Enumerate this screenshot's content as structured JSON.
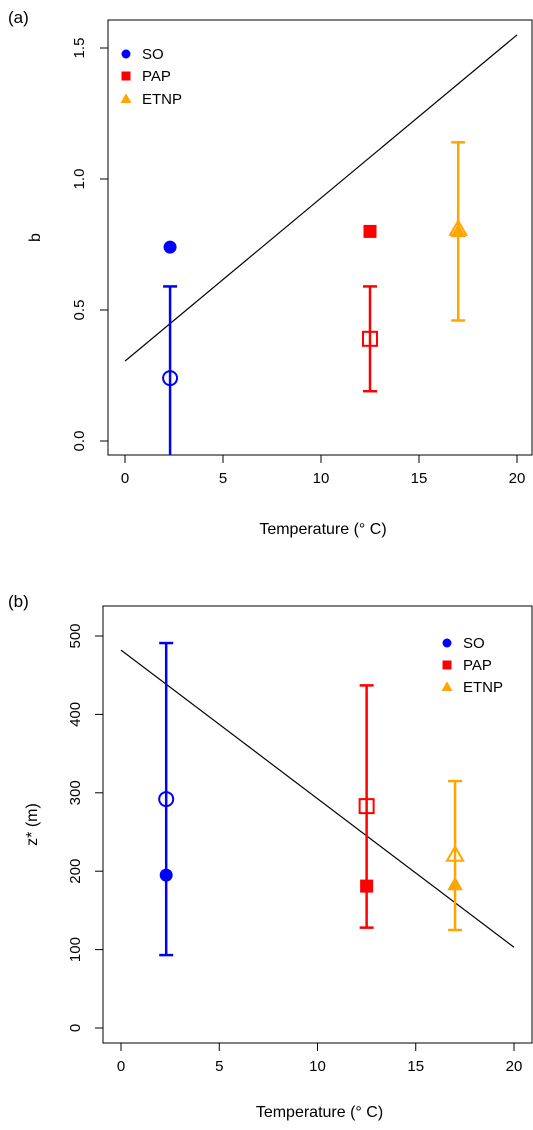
{
  "colors": {
    "SO": "#0000ff",
    "PAP": "#ff0000",
    "ETNP": "#ffa500",
    "axis": "#000000"
  },
  "chart_data": [
    {
      "type": "scatter",
      "panel_label": "(a)",
      "xlabel": "Temperature (° C)",
      "ylabel": "b",
      "xlim": [
        0,
        20
      ],
      "ylim": [
        0,
        1.5
      ],
      "x_ticks": [
        0,
        5,
        10,
        15,
        20
      ],
      "x_tick_labels": [
        "0",
        "5",
        "10",
        "15",
        "20"
      ],
      "y_ticks": [
        0,
        0.5,
        1.0,
        1.5
      ],
      "y_tick_labels": [
        "0.0",
        "0.5",
        "1.0",
        "1.5"
      ],
      "grid": false,
      "legend_position": "top-left",
      "legend": [
        {
          "name": "SO",
          "marker": "circle",
          "color": "#0000ff"
        },
        {
          "name": "PAP",
          "marker": "square",
          "color": "#ff0000"
        },
        {
          "name": "ETNP",
          "marker": "triangle",
          "color": "#ffa500"
        }
      ],
      "series": [
        {
          "name": "SO",
          "color": "#0000ff",
          "marker": "circle",
          "filled": {
            "x": 2.3,
            "y": 0.74
          },
          "open": {
            "x": 2.3,
            "y": 0.24,
            "err_low": -0.06,
            "err_high": 0.59
          }
        },
        {
          "name": "PAP",
          "color": "#ff0000",
          "marker": "square",
          "filled": {
            "x": 12.5,
            "y": 0.8
          },
          "open": {
            "x": 12.5,
            "y": 0.39,
            "err_low": 0.19,
            "err_high": 0.59
          }
        },
        {
          "name": "ETNP",
          "color": "#ffa500",
          "marker": "triangle",
          "filled": {
            "x": 17.0,
            "y": 0.8
          },
          "open": {
            "x": 17.0,
            "y": 0.81,
            "err_low": 0.46,
            "err_high": 1.14
          }
        }
      ],
      "fit_line": {
        "x": [
          0,
          20
        ],
        "y": [
          0.305,
          1.55
        ]
      }
    },
    {
      "type": "scatter",
      "panel_label": "(b)",
      "xlabel": "Temperature (° C)",
      "ylabel": "z* (m)",
      "xlim": [
        0,
        20
      ],
      "ylim": [
        0,
        500
      ],
      "x_ticks": [
        0,
        5,
        10,
        15,
        20
      ],
      "x_tick_labels": [
        "0",
        "5",
        "10",
        "15",
        "20"
      ],
      "y_ticks": [
        0,
        100,
        200,
        300,
        400,
        500
      ],
      "y_tick_labels": [
        "0",
        "100",
        "200",
        "300",
        "400",
        "500"
      ],
      "grid": false,
      "legend_position": "top-right",
      "legend": [
        {
          "name": "SO",
          "marker": "circle",
          "color": "#0000ff"
        },
        {
          "name": "PAP",
          "marker": "square",
          "color": "#ff0000"
        },
        {
          "name": "ETNP",
          "marker": "triangle",
          "color": "#ffa500"
        }
      ],
      "series": [
        {
          "name": "SO",
          "color": "#0000ff",
          "marker": "circle",
          "filled": {
            "x": 2.3,
            "y": 195
          },
          "open": {
            "x": 2.3,
            "y": 292,
            "err_low": 93,
            "err_high": 491
          }
        },
        {
          "name": "PAP",
          "color": "#ff0000",
          "marker": "square",
          "filled": {
            "x": 12.5,
            "y": 181
          },
          "open": {
            "x": 12.5,
            "y": 283,
            "err_low": 128,
            "err_high": 437
          }
        },
        {
          "name": "ETNP",
          "color": "#ffa500",
          "marker": "triangle",
          "filled": {
            "x": 17.0,
            "y": 183
          },
          "open": {
            "x": 17.0,
            "y": 221,
            "err_low": 125,
            "err_high": 315
          }
        }
      ],
      "fit_line": {
        "x": [
          0,
          20
        ],
        "y": [
          482,
          103
        ]
      }
    }
  ]
}
